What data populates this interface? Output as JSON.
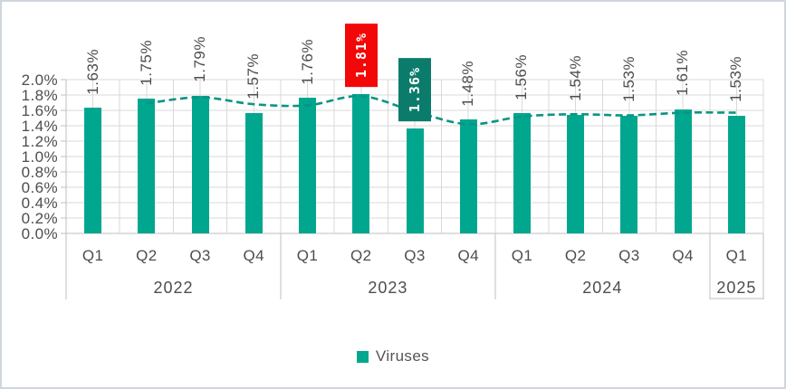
{
  "chart_data": {
    "type": "bar",
    "categories": [
      "Q1",
      "Q2",
      "Q3",
      "Q4",
      "Q1",
      "Q2",
      "Q3",
      "Q4",
      "Q1",
      "Q2",
      "Q3",
      "Q4",
      "Q1"
    ],
    "year_groups": [
      {
        "label": "2022",
        "span": 4
      },
      {
        "label": "2023",
        "span": 4
      },
      {
        "label": "2024",
        "span": 4
      },
      {
        "label": "2025",
        "span": 1
      }
    ],
    "series": [
      {
        "name": "Viruses",
        "values": [
          1.63,
          1.75,
          1.79,
          1.57,
          1.76,
          1.81,
          1.36,
          1.48,
          1.56,
          1.54,
          1.53,
          1.61,
          1.53
        ]
      }
    ],
    "data_labels": [
      "1.63%",
      "1.75%",
      "1.79%",
      "1.57%",
      "1.76%",
      "1.81%",
      "1.36%",
      "1.48%",
      "1.56%",
      "1.54%",
      "1.53%",
      "1.61%",
      "1.53%"
    ],
    "highlights": [
      {
        "index": 5,
        "label": "1.81%",
        "bg": "#f20808",
        "text_color": "#ffffff"
      },
      {
        "index": 6,
        "label": "1.36%",
        "bg": "#0b7c6c",
        "text_color": "#ffffff"
      }
    ],
    "y_ticks": [
      "0.0%",
      "0.2%",
      "0.4%",
      "0.6%",
      "0.8%",
      "1.0%",
      "1.2%",
      "1.4%",
      "1.6%",
      "1.8%",
      "2.0%"
    ],
    "ylim": [
      0,
      2.0
    ],
    "grid": true,
    "trendline": {
      "type": "moving_average",
      "period": 2,
      "style": "dashed",
      "color": "#0b9483"
    },
    "legend": {
      "position": "bottom",
      "entries": [
        {
          "label": "Viruses",
          "color": "#00a78e"
        }
      ]
    },
    "colors": {
      "bar": "#00a78e",
      "gridline": "#d9d9d9",
      "axis_line": "#bfbfbf",
      "label_text": "#4d4d4d"
    }
  }
}
